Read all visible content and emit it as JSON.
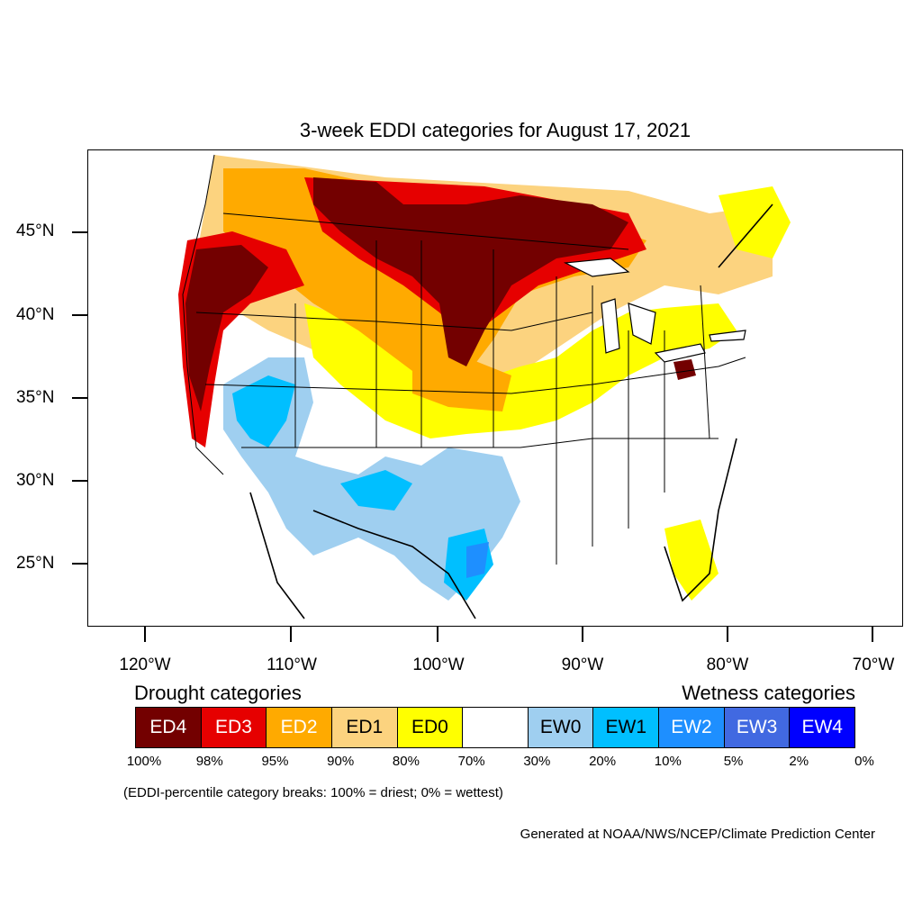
{
  "title": "3-week EDDI categories for August 17, 2021",
  "map": {
    "lat_labels": [
      "45°N",
      "40°N",
      "35°N",
      "30°N",
      "25°N"
    ],
    "lon_labels": [
      "120°W",
      "110°W",
      "100°W",
      "90°W",
      "80°W",
      "70°W"
    ]
  },
  "legend": {
    "drought_heading": "Drought categories",
    "wetness_heading": "Wetness categories",
    "categories": [
      {
        "label": "ED4",
        "color": "#730000",
        "text_color": "#ffffff"
      },
      {
        "label": "ED3",
        "color": "#e60000",
        "text_color": "#ffffff"
      },
      {
        "label": "ED2",
        "color": "#ffaa00",
        "text_color": "#ffffff"
      },
      {
        "label": "ED1",
        "color": "#fcd37f",
        "text_color": "#000000"
      },
      {
        "label": "ED0",
        "color": "#ffff00",
        "text_color": "#000000"
      },
      {
        "label": "",
        "color": "#ffffff",
        "text_color": "#000000"
      },
      {
        "label": "EW0",
        "color": "#9fcff0",
        "text_color": "#000000"
      },
      {
        "label": "EW1",
        "color": "#00bfff",
        "text_color": "#000000"
      },
      {
        "label": "EW2",
        "color": "#1e8fff",
        "text_color": "#ffffff"
      },
      {
        "label": "EW3",
        "color": "#4169e1",
        "text_color": "#ffffff"
      },
      {
        "label": "EW4",
        "color": "#0000ff",
        "text_color": "#ffffff"
      }
    ],
    "percent_breaks": [
      "100%",
      "98%",
      "95%",
      "90%",
      "80%",
      "70%",
      "30%",
      "20%",
      "10%",
      "5%",
      "2%",
      "0%"
    ]
  },
  "note": "(EDDI-percentile category breaks: 100% = driest; 0% = wettest)",
  "credit": "Generated at NOAA/NWS/NCEP/Climate Prediction Center"
}
